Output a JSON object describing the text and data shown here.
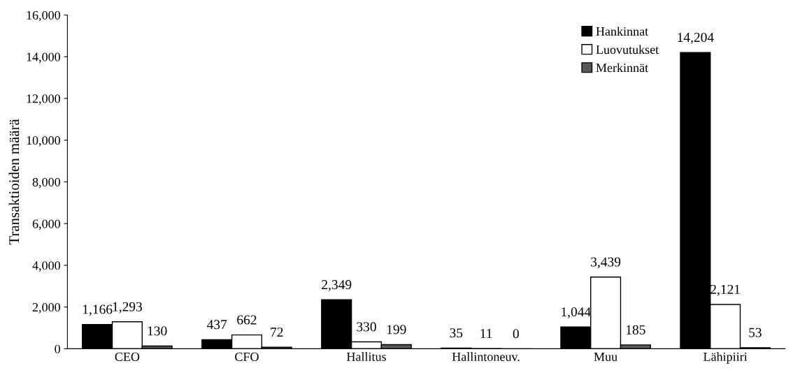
{
  "chart_data": {
    "type": "bar",
    "ylabel": "Transaktioiden määrä",
    "categories": [
      "CEO",
      "CFO",
      "Hallitus",
      "Hallintoneuv.",
      "Muu",
      "Lähipiiri"
    ],
    "series": [
      {
        "name": "Hankinnat",
        "color": "#000000",
        "values": [
          1166,
          437,
          2349,
          35,
          1044,
          14204
        ],
        "value_labels": [
          "1,166",
          "437",
          "2,349",
          "35",
          "1,044",
          "14,204"
        ]
      },
      {
        "name": "Luovutukset",
        "color": "#ffffff",
        "values": [
          1293,
          662,
          330,
          11,
          3439,
          2121
        ],
        "value_labels": [
          "1,293",
          "662",
          "330",
          "11",
          "3,439",
          "2,121"
        ]
      },
      {
        "name": "Merkinnät",
        "color": "#595959",
        "values": [
          130,
          72,
          199,
          0,
          185,
          53
        ],
        "value_labels": [
          "130",
          "72",
          "199",
          "0",
          "185",
          "53"
        ]
      }
    ],
    "ylim": [
      0,
      16000
    ],
    "yticks": [
      0,
      {
        "value": 2000,
        "label": "2,000"
      },
      {
        "value": 4000,
        "label": "4,000"
      },
      {
        "value": 6000,
        "label": "6,000"
      },
      {
        "value": 8000,
        "label": "8,000"
      },
      {
        "value": 10000,
        "label": "10,000"
      },
      {
        "value": 12000,
        "label": "12,000"
      },
      {
        "value": 14000,
        "label": "14,000"
      },
      {
        "value": 16000,
        "label": "16,000"
      }
    ],
    "grid": false,
    "legend": "top right"
  }
}
